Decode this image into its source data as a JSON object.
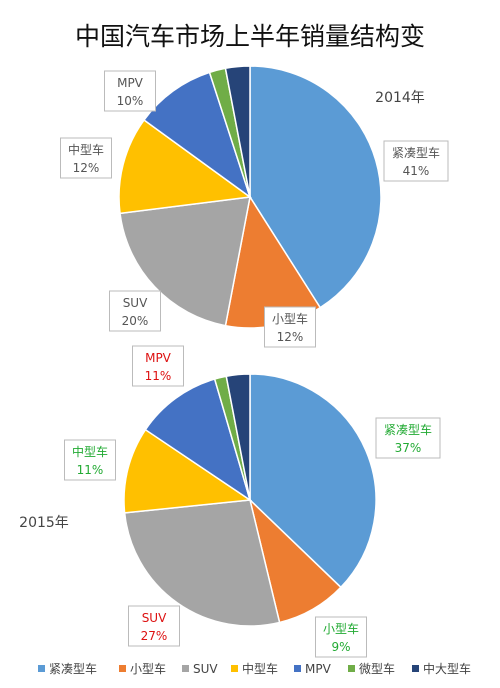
{
  "title": "中国汽车市场上半年销量结构变",
  "chart_data": [
    {
      "type": "pie",
      "year_label": "2014年",
      "slices": [
        {
          "name": "紧凑型车",
          "value": 41,
          "label": "41%",
          "color": "#5B9BD5",
          "label_color": "#555555"
        },
        {
          "name": "小型车",
          "value": 12,
          "label": "12%",
          "color": "#ED7D31",
          "label_color": "#555555"
        },
        {
          "name": "SUV",
          "value": 20,
          "label": "20%",
          "color": "#A5A5A5",
          "label_color": "#555555"
        },
        {
          "name": "中型车",
          "value": 12,
          "label": "12%",
          "color": "#FFC000",
          "label_color": "#555555"
        },
        {
          "name": "MPV",
          "value": 10,
          "label": "10%",
          "color": "#4472C4",
          "label_color": "#555555"
        },
        {
          "name": "微型车",
          "value": 2,
          "label": "",
          "color": "#70AD47",
          "label_color": "#555555"
        },
        {
          "name": "中大型车",
          "value": 3,
          "label": "",
          "color": "#264478",
          "label_color": "#555555"
        }
      ]
    },
    {
      "type": "pie",
      "year_label": "2015年",
      "slices": [
        {
          "name": "紧凑型车",
          "value": 37,
          "label": "37%",
          "color": "#5B9BD5",
          "label_color": "#22AA33"
        },
        {
          "name": "小型车",
          "value": 9,
          "label": "9%",
          "color": "#ED7D31",
          "label_color": "#22AA33"
        },
        {
          "name": "SUV",
          "value": 27,
          "label": "27%",
          "color": "#A5A5A5",
          "label_color": "#DD1111"
        },
        {
          "name": "中型车",
          "value": 11,
          "label": "11%",
          "color": "#FFC000",
          "label_color": "#22AA33"
        },
        {
          "name": "MPV",
          "value": 11,
          "label": "11%",
          "color": "#4472C4",
          "label_color": "#DD1111"
        },
        {
          "name": "微型车",
          "value": 1.5,
          "label": "",
          "color": "#70AD47",
          "label_color": "#555555"
        },
        {
          "name": "中大型车",
          "value": 3,
          "label": "",
          "color": "#264478",
          "label_color": "#555555"
        }
      ]
    }
  ],
  "legend": [
    {
      "name": "紧凑型车",
      "color": "#5B9BD5"
    },
    {
      "name": "小型车",
      "color": "#ED7D31"
    },
    {
      "name": "SUV",
      "color": "#A5A5A5"
    },
    {
      "name": "中型车",
      "color": "#FFC000"
    },
    {
      "name": "MPV",
      "color": "#4472C4"
    },
    {
      "name": "微型车",
      "color": "#70AD47"
    },
    {
      "name": "中大型车",
      "color": "#264478"
    }
  ]
}
